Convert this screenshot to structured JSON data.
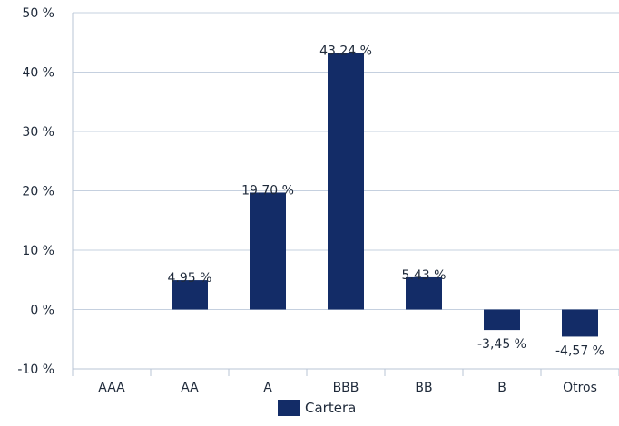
{
  "chart_data": {
    "type": "bar",
    "categories": [
      "AAA",
      "AA",
      "A",
      "BBB",
      "BB",
      "B",
      "Otros"
    ],
    "series": [
      {
        "name": "Cartera",
        "values": [
          null,
          4.95,
          19.7,
          43.24,
          5.43,
          -3.45,
          -4.57
        ],
        "labels": [
          "",
          "4.95 %",
          "19.70 %",
          "43.24 %",
          "5.43 %",
          "-3,45 %",
          "-4,57 %"
        ]
      }
    ],
    "ylim": [
      -10,
      50
    ],
    "yticks": [
      -10,
      0,
      10,
      20,
      30,
      40,
      50
    ],
    "ytick_labels": [
      "-10 %",
      "0 %",
      "10 %",
      "20 %",
      "30 %",
      "40 %",
      "50 %"
    ],
    "grid": true,
    "legend_position": "bottom",
    "colors": {
      "bar": "#132c67",
      "grid": "#c5d0df",
      "axis": "#b8c4d6",
      "text": "#1f2a3a"
    }
  }
}
